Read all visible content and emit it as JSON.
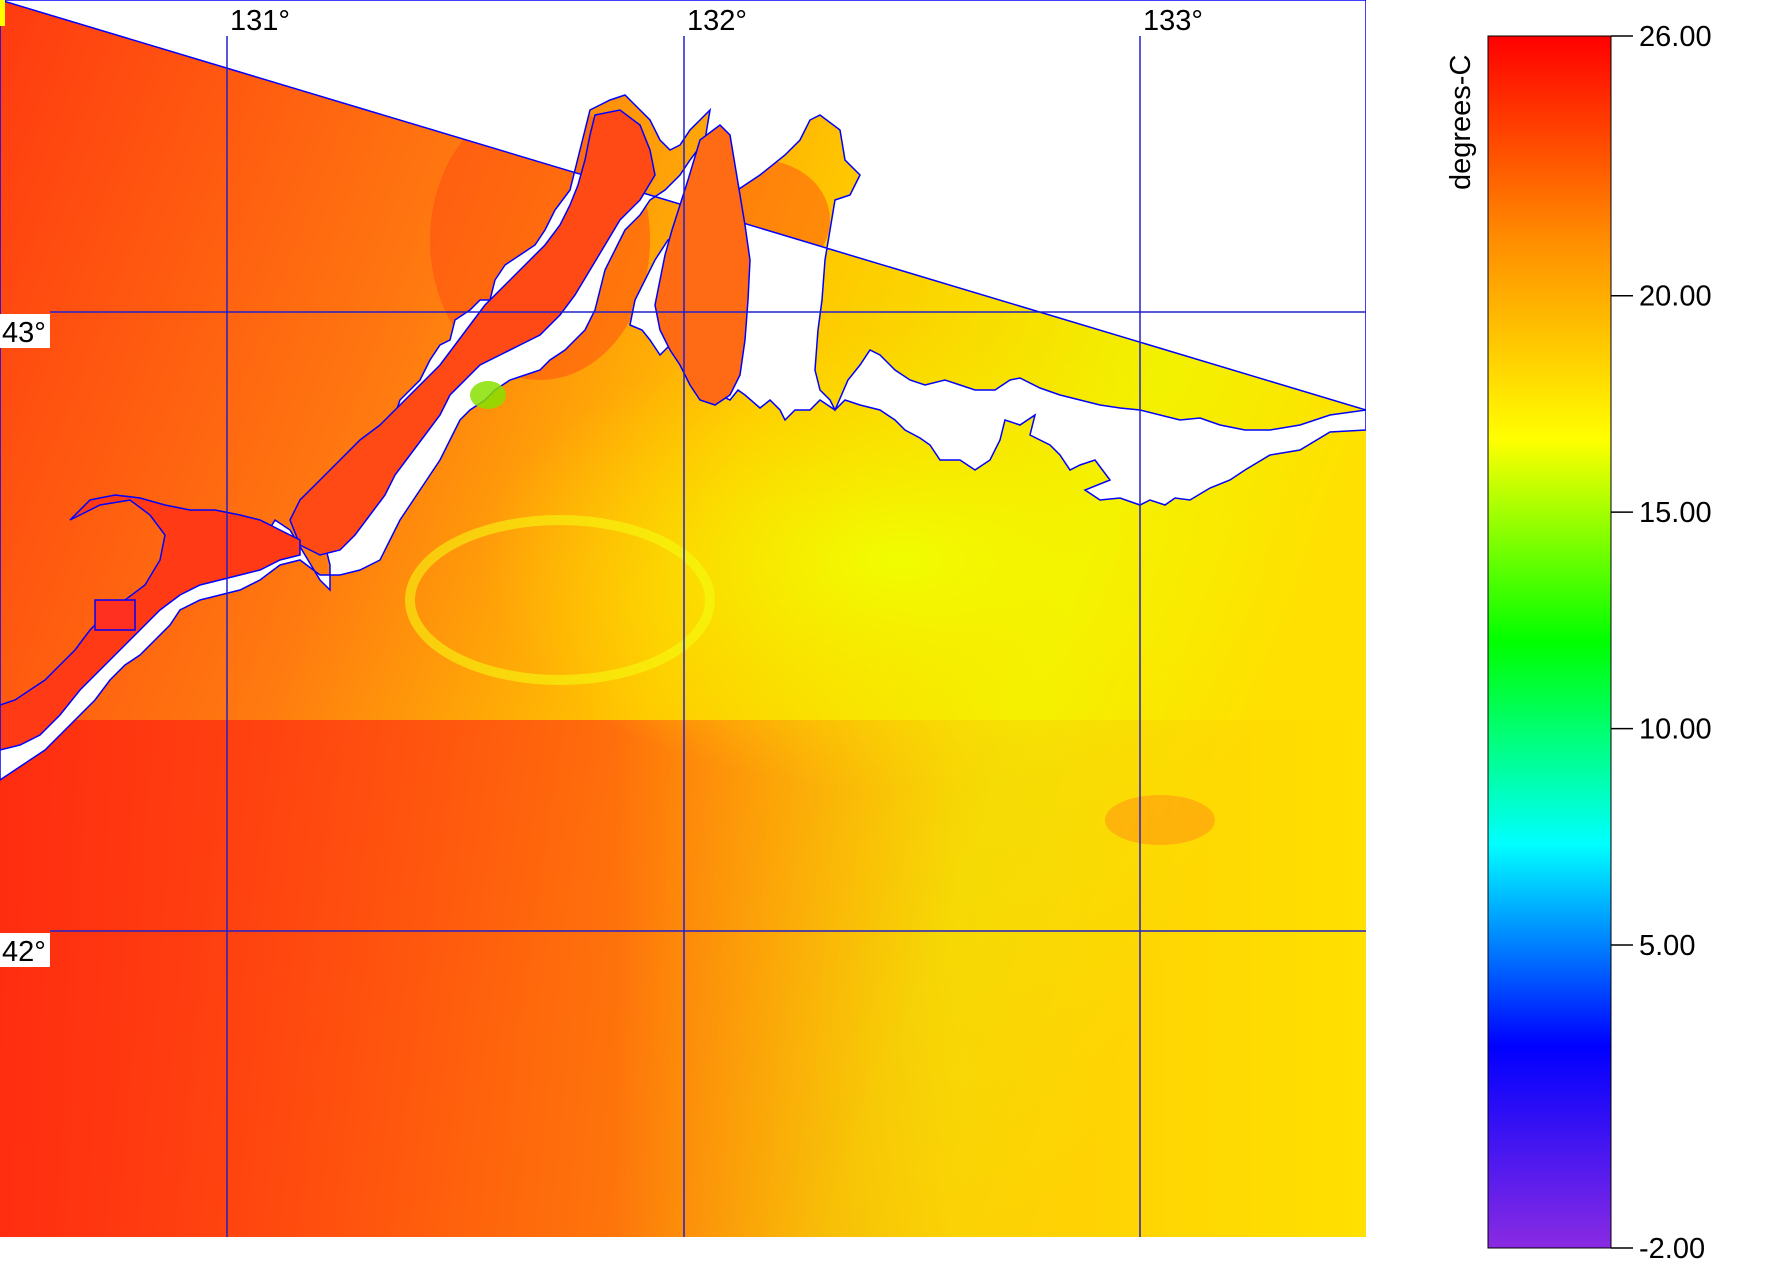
{
  "map": {
    "longitude_labels": [
      "131°",
      "132°",
      "133°"
    ],
    "latitude_labels": [
      "43°",
      "42°"
    ],
    "grid_color": "#2020cc",
    "coastline_color": "#0000ff",
    "land_color": "#ffffff"
  },
  "colorbar": {
    "title": "degrees-C",
    "ticks": [
      "26.00",
      "20.00",
      "15.00",
      "10.00",
      "5.00",
      "-2.00"
    ],
    "tick_values": [
      26,
      20,
      15,
      10,
      5,
      -2
    ],
    "range": [
      -2,
      26
    ],
    "colors": [
      "#ff0000",
      "#ff8c00",
      "#ffff00",
      "#00ff00",
      "#00ffff",
      "#0000ff",
      "#8a2be2"
    ]
  }
}
